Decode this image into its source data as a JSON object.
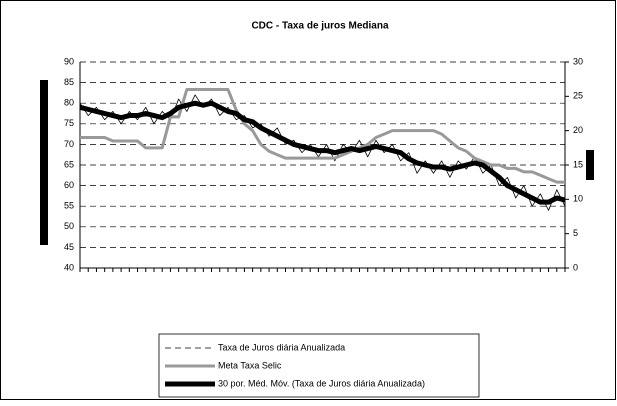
{
  "chart_data": {
    "type": "line",
    "title": "CDC - Taxa de juros Mediana",
    "ylim": [
      40,
      90
    ],
    "yticks": [
      40,
      45,
      50,
      55,
      60,
      65,
      70,
      75,
      80,
      85,
      90
    ],
    "y2lim": [
      0,
      30
    ],
    "y2ticks": [
      0,
      5,
      10,
      15,
      20,
      25,
      30
    ],
    "grid": true,
    "series": [
      {
        "name": "Taxa de Juros diária Anualizada",
        "color": "#000000",
        "values": [
          80,
          77,
          79,
          76,
          78,
          75,
          78,
          76,
          79,
          75,
          78,
          76,
          81,
          78,
          82,
          79,
          81,
          77,
          79,
          76,
          77,
          74,
          75,
          72,
          74,
          70,
          71,
          68,
          70,
          67,
          70,
          66,
          70,
          68,
          71,
          67,
          71,
          68,
          70,
          66,
          68,
          63,
          66,
          63,
          66,
          62,
          66,
          64,
          67,
          63,
          65,
          60,
          62,
          57,
          60,
          55,
          58,
          54,
          59,
          55
        ]
      },
      {
        "name": "Meta Taxa Selic",
        "color": "#999999",
        "axis": "y2",
        "values": [
          19,
          19,
          19,
          19,
          18.5,
          18.5,
          18.5,
          18.5,
          17.5,
          17.5,
          17.5,
          22,
          22,
          26,
          26,
          26,
          26,
          26,
          26,
          23,
          21,
          20,
          18,
          17,
          16.5,
          16,
          16,
          16,
          16,
          16,
          16,
          16,
          16.5,
          17,
          17.5,
          18,
          19,
          19.5,
          20,
          20,
          20,
          20,
          20,
          20,
          19.5,
          18.5,
          17.5,
          17,
          16,
          15.5,
          15,
          15,
          14.5,
          14.5,
          14,
          14,
          13.5,
          13,
          12.5,
          12.5
        ]
      },
      {
        "name": "30 por. Méd. Móv. (Taxa de Juros diária Anualizada)",
        "color": "#000000",
        "values": [
          79,
          78.5,
          78,
          77.5,
          77,
          76.5,
          77,
          77,
          77.5,
          77,
          76.5,
          77.5,
          79,
          79.5,
          80,
          79.5,
          80,
          79,
          78,
          77.5,
          76,
          75.5,
          74,
          73,
          72,
          71,
          70,
          69.5,
          69,
          68.5,
          68.5,
          68,
          68.5,
          69,
          68.5,
          69,
          69.5,
          69,
          68.5,
          68,
          66.5,
          65.5,
          65,
          64.5,
          64.5,
          64,
          64.5,
          65,
          65.5,
          65,
          63.5,
          62,
          60,
          59,
          58,
          57,
          56,
          56,
          57,
          56.5
        ]
      }
    ]
  }
}
